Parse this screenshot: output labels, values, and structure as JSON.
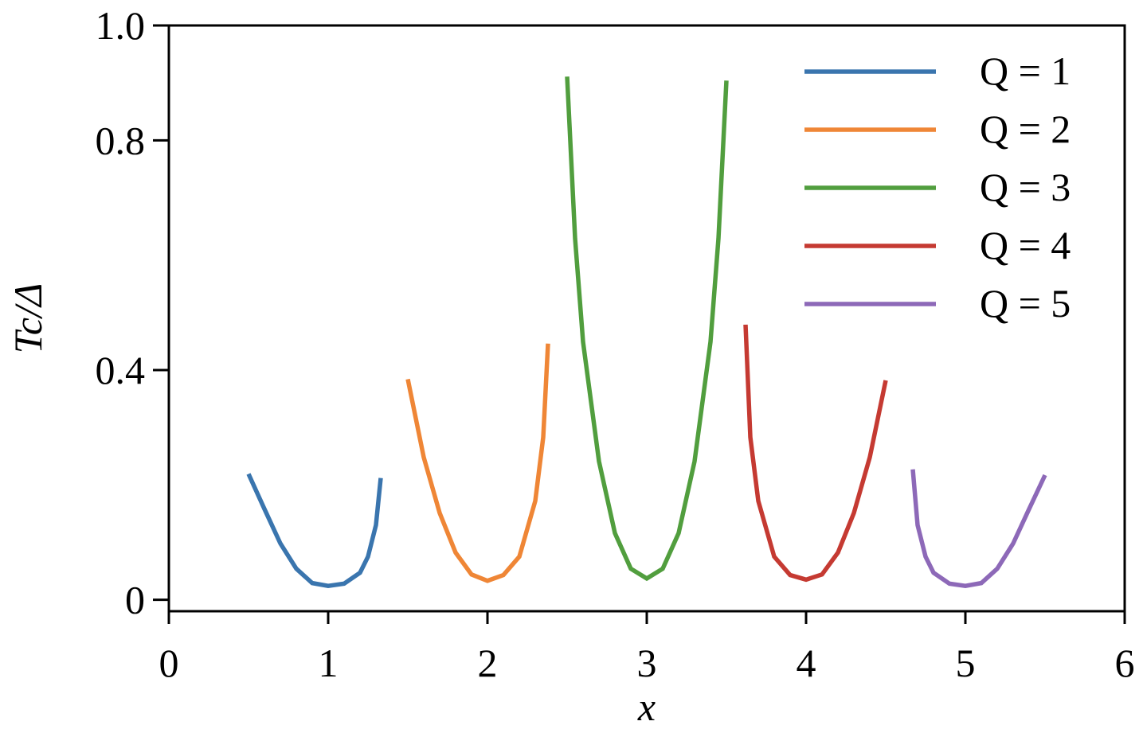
{
  "chart_data": {
    "type": "line",
    "xlabel": "x",
    "ylabel": "Tc/Δ",
    "xlim": [
      0,
      6
    ],
    "xticks": [
      0,
      1,
      2,
      3,
      4,
      5,
      6
    ],
    "ylim": [
      -0.02,
      1.0
    ],
    "yticks": [
      0,
      0.4,
      0.8,
      {
        "value": 1.0,
        "label": "1.0"
      }
    ],
    "legend": "upper right",
    "series": [
      {
        "name": "Q = 1",
        "color": "#3a75ae",
        "x": [
          0.5,
          0.6,
          0.7,
          0.8,
          0.9,
          1.0,
          1.1,
          1.2,
          1.25,
          1.3,
          1.33
        ],
        "values": [
          0.219,
          0.158,
          0.098,
          0.054,
          0.029,
          0.024,
          0.028,
          0.047,
          0.075,
          0.13,
          0.212
        ]
      },
      {
        "name": "Q = 2",
        "color": "#ef8636",
        "x": [
          1.5,
          1.6,
          1.7,
          1.8,
          1.9,
          2.0,
          2.1,
          2.2,
          2.3,
          2.35,
          2.38
        ],
        "values": [
          0.384,
          0.248,
          0.151,
          0.082,
          0.044,
          0.033,
          0.043,
          0.075,
          0.172,
          0.283,
          0.446
        ]
      },
      {
        "name": "Q = 3",
        "color": "#519e3e",
        "x": [
          2.5,
          2.55,
          2.6,
          2.7,
          2.8,
          2.9,
          3.0,
          3.1,
          3.2,
          3.3,
          3.4,
          3.45,
          3.5
        ],
        "values": [
          0.911,
          0.629,
          0.449,
          0.241,
          0.116,
          0.054,
          0.037,
          0.054,
          0.116,
          0.241,
          0.449,
          0.629,
          0.904
        ]
      },
      {
        "name": "Q = 4",
        "color": "#c53a32",
        "x": [
          3.62,
          3.65,
          3.7,
          3.8,
          3.9,
          4.0,
          4.1,
          4.2,
          4.3,
          4.4,
          4.5
        ],
        "values": [
          0.479,
          0.283,
          0.172,
          0.075,
          0.043,
          0.035,
          0.044,
          0.082,
          0.151,
          0.248,
          0.382
        ]
      },
      {
        "name": "Q = 5",
        "color": "#8d69b8",
        "x": [
          4.67,
          4.7,
          4.75,
          4.8,
          4.9,
          5.0,
          5.1,
          5.2,
          5.3,
          5.4,
          5.5
        ],
        "values": [
          0.227,
          0.13,
          0.075,
          0.047,
          0.028,
          0.024,
          0.029,
          0.054,
          0.098,
          0.158,
          0.217
        ]
      }
    ]
  }
}
